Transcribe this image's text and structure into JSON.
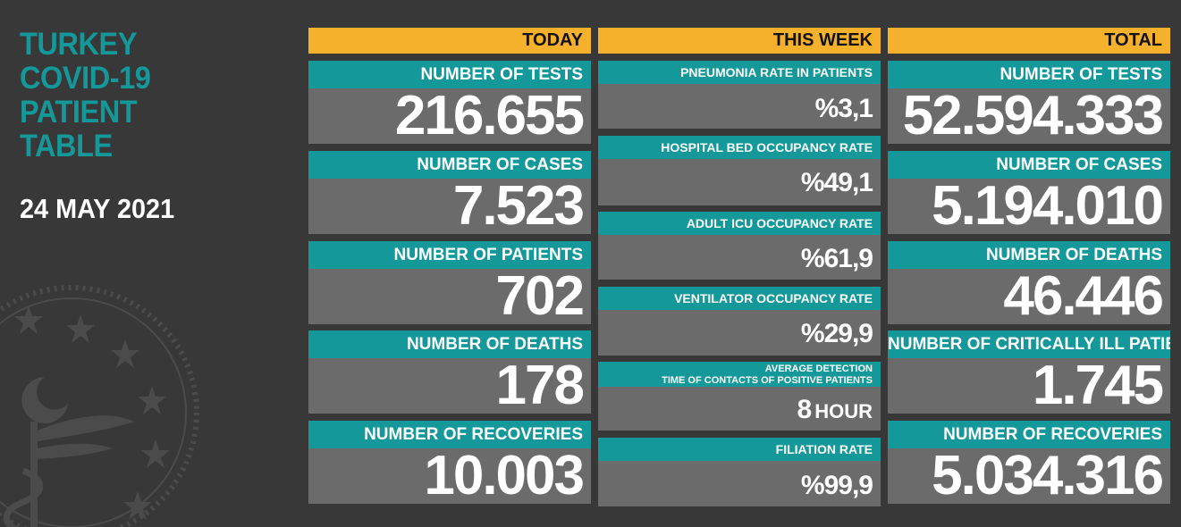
{
  "title_lines": [
    "TURKEY",
    "COVID-19",
    "PATIENT",
    "TABLE"
  ],
  "date": "24 MAY 2021",
  "columns": {
    "today": {
      "header": "TODAY",
      "items": [
        {
          "label": "NUMBER OF TESTS",
          "value": "216.655"
        },
        {
          "label": "NUMBER OF CASES",
          "value": "7.523"
        },
        {
          "label": "NUMBER OF PATIENTS",
          "value": "702"
        },
        {
          "label": "NUMBER OF DEATHS",
          "value": "178"
        },
        {
          "label": "NUMBER OF RECOVERIES",
          "value": "10.003"
        }
      ]
    },
    "week": {
      "header": "THIS WEEK",
      "items": [
        {
          "label": "PNEUMONIA RATE IN PATIENTS",
          "value": "%3,1"
        },
        {
          "label": "HOSPITAL BED OCCUPANCY RATE",
          "value": "%49,1"
        },
        {
          "label": "ADULT ICU OCCUPANCY RATE",
          "value": "%61,9"
        },
        {
          "label": "VENTILATOR OCCUPANCY RATE",
          "value": "%29,9"
        },
        {
          "label_line1": "AVERAGE DETECTION",
          "label_line2": "TIME OF CONTACTS OF POSITIVE PATIENTS",
          "value": "8",
          "unit": "HOUR"
        },
        {
          "label": "FILIATION RATE",
          "value": "%99,9"
        }
      ]
    },
    "total": {
      "header": "TOTAL",
      "items": [
        {
          "label": "NUMBER OF TESTS",
          "value": "52.594.333"
        },
        {
          "label": "NUMBER OF CASES",
          "value": "5.194.010"
        },
        {
          "label": "NUMBER OF DEATHS",
          "value": "46.446"
        },
        {
          "label": "NUMBER OF CRITICALLY ILL PATIENTS",
          "value": "1.745"
        },
        {
          "label": "NUMBER OF RECOVERIES",
          "value": "5.034.316"
        }
      ]
    }
  },
  "colors": {
    "background": "#383838",
    "header": "#f5b12b",
    "label": "#14989a",
    "value_box": "#6b6b6b",
    "title": "#14989a"
  },
  "icons": [
    "ministry-of-health-emblem-icon"
  ]
}
